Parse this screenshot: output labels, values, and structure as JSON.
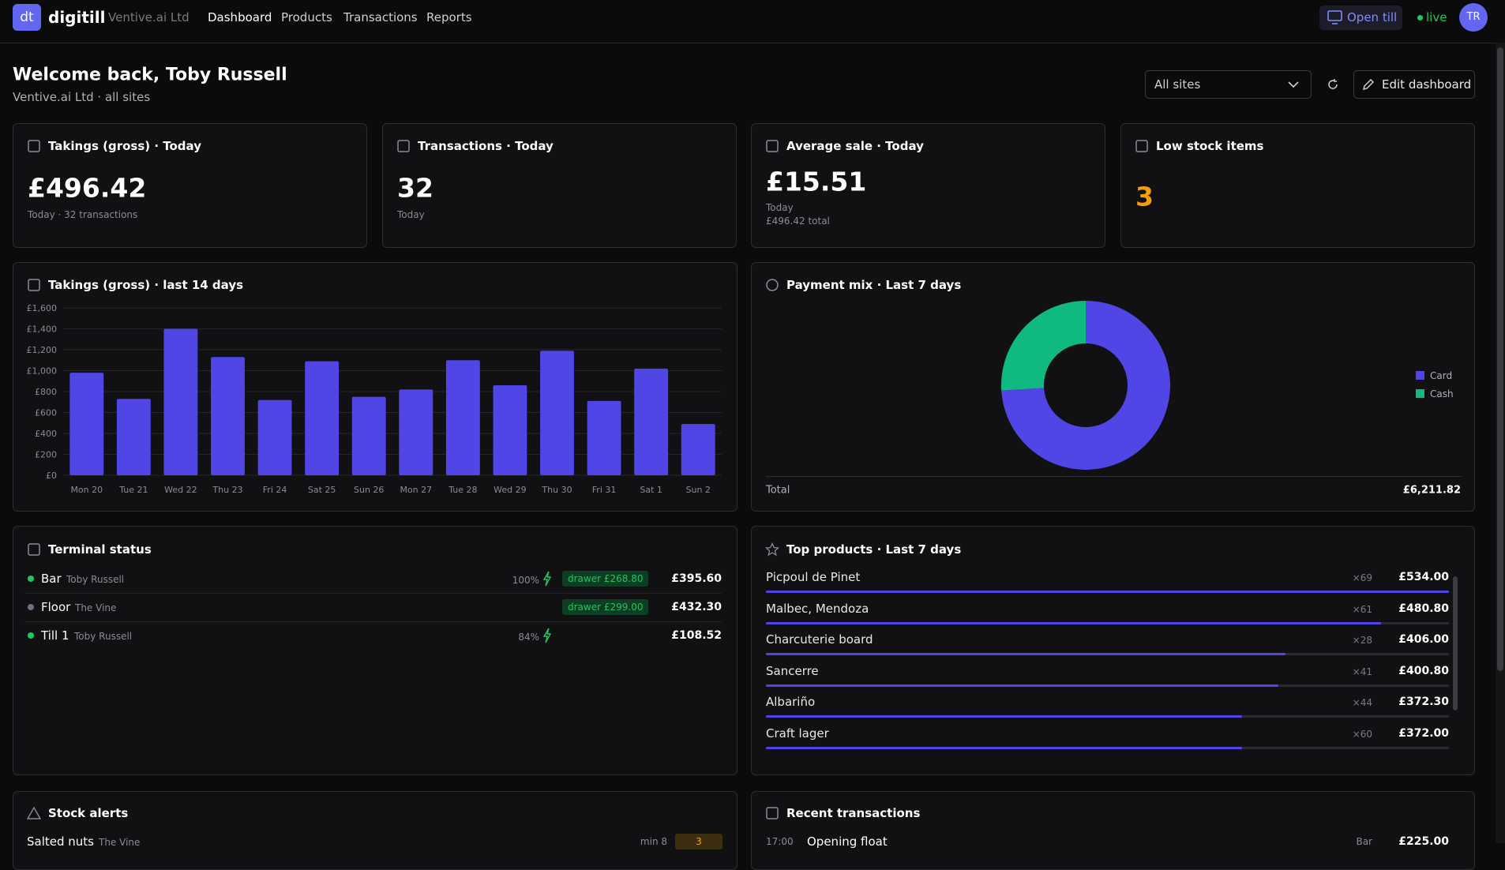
{
  "nav": {
    "logo": "dt",
    "brand": "digitill",
    "org": "Ventive.ai Ltd",
    "links": [
      "Dashboard",
      "Products",
      "Transactions",
      "Reports"
    ],
    "open_till": "Open till",
    "status": "live",
    "avatar": "TR"
  },
  "header": {
    "title": "Welcome back, Toby Russell",
    "subtitle": "Ventive.ai Ltd · all sites",
    "site_select": "All sites",
    "edit": "Edit dashboard"
  },
  "kpis": [
    {
      "label": "Takings (gross) · Today",
      "value": "£496.42",
      "notes": [
        "Today · 32 transactions"
      ]
    },
    {
      "label": "Transactions · Today",
      "value": "32",
      "notes": [
        "Today"
      ]
    },
    {
      "label": "Average sale · Today",
      "value": "£15.51",
      "notes": [
        "Today",
        "£496.42 total"
      ]
    },
    {
      "label": "Low stock items",
      "value": "3",
      "notes": [],
      "color": "#f59e0b"
    }
  ],
  "chart_data": [
    {
      "type": "bar",
      "title": "Takings (gross) · last 14 days",
      "categories": [
        "Mon 20",
        "Tue 21",
        "Wed 22",
        "Thu 23",
        "Fri 24",
        "Sat 25",
        "Sun 26",
        "Mon 27",
        "Tue 28",
        "Wed 29",
        "Thu 30",
        "Fri 31",
        "Sat 1",
        "Sun 2"
      ],
      "values": [
        980,
        730,
        1400,
        1130,
        720,
        1090,
        750,
        820,
        1100,
        860,
        1190,
        710,
        1020,
        490
      ],
      "color": "#5046e6",
      "ylim": [
        0,
        1600
      ],
      "yticks": [
        {
          "value": 0,
          "label": "£0"
        },
        {
          "value": 200,
          "label": "£200"
        },
        {
          "value": 400,
          "label": "£400"
        },
        {
          "value": 600,
          "label": "£600"
        },
        {
          "value": 800,
          "label": "£800"
        },
        {
          "value": 1000,
          "label": "£1,000"
        },
        {
          "value": 1200,
          "label": "£1,200"
        },
        {
          "value": 1400,
          "label": "£1,400"
        },
        {
          "value": 1600,
          "label": "£1,600"
        }
      ],
      "grid": true
    },
    {
      "type": "donut",
      "title": "Payment mix · Last 7 days",
      "categories": [
        "Card",
        "Cash"
      ],
      "values": [
        74,
        26
      ],
      "colors": [
        "#5046e6",
        "#10b981"
      ],
      "total_label": "Total",
      "total": "£6,211.82"
    },
    {
      "type": "progress",
      "title": "Top products · Last 7 days",
      "categories": [
        "Picpoul de Pinet",
        "Malbec, Mendoza",
        "Charcuterie board",
        "Sancerre",
        "Albariño",
        "Craft lager"
      ],
      "quantities": [
        "×69",
        "×61",
        "×28",
        "×41",
        "×44",
        "×60"
      ],
      "values": [
        534,
        480.8,
        406,
        400.8,
        372.3,
        372
      ],
      "value_labels": [
        "£534.00",
        "£480.80",
        "£406.00",
        "£400.80",
        "£372.30",
        "£372.00"
      ],
      "color": "#5046e6"
    }
  ],
  "terminals": {
    "title": "Terminal status",
    "rows": [
      {
        "name": "Bar",
        "user": "Toby Russell",
        "battery": "100%",
        "drawer": "drawer £268.80",
        "amount": "£395.60",
        "online": true
      },
      {
        "name": "Floor",
        "user": "The Vine",
        "battery": null,
        "drawer": "drawer £299.00",
        "amount": "£432.30",
        "online": false
      },
      {
        "name": "Till 1",
        "user": "Toby Russell",
        "battery": "84%",
        "drawer": null,
        "amount": "£108.52",
        "online": true
      }
    ]
  },
  "stock_alerts": {
    "title": "Stock alerts",
    "rows": [
      {
        "name": "Salted nuts",
        "site": "The Vine",
        "min": "min 8",
        "qty": "3"
      }
    ]
  },
  "recent": {
    "title": "Recent transactions",
    "rows": [
      {
        "time": "17:00",
        "label": "Opening float",
        "terminal": "Bar",
        "amount": "£225.00"
      }
    ]
  }
}
